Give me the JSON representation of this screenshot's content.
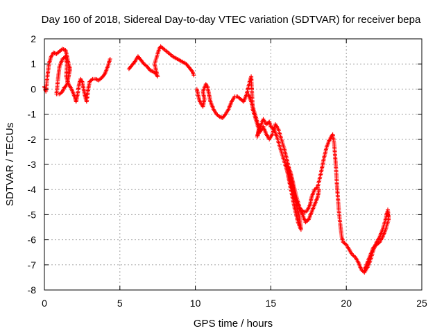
{
  "chart_data": {
    "type": "scatter",
    "title": "Day 160 of 2018, Sidereal Day-to-day VTEC variation (SDTVAR) for receiver bepa",
    "xlabel": "GPS time / hours",
    "ylabel": "SDTVAR / TECUs",
    "xlim": [
      0,
      25
    ],
    "ylim": [
      -8,
      2
    ],
    "xticks": [
      "0",
      "5",
      "10",
      "15",
      "20",
      "25"
    ],
    "yticks": [
      "2",
      "1",
      "0",
      "-1",
      "-2",
      "-3",
      "-4",
      "-5",
      "-6",
      "-7",
      "-8"
    ],
    "marker": "+",
    "grid": true,
    "color": "#ff0000",
    "series": [
      {
        "name": "segment-1",
        "anchors": [
          [
            0.0,
            0.1
          ],
          [
            0.1,
            -0.1
          ],
          [
            0.2,
            0.5
          ],
          [
            0.3,
            1.0
          ],
          [
            0.45,
            1.3
          ],
          [
            0.6,
            1.45
          ],
          [
            0.8,
            1.4
          ],
          [
            1.0,
            1.5
          ],
          [
            1.2,
            1.6
          ],
          [
            1.4,
            1.55
          ],
          [
            1.5,
            1.3
          ],
          [
            1.6,
            1.0
          ],
          [
            1.7,
            0.8
          ],
          [
            1.6,
            0.5
          ],
          [
            1.5,
            0.2
          ],
          [
            1.4,
            0.1
          ],
          [
            1.3,
            0.05
          ],
          [
            1.2,
            -0.1
          ],
          [
            1.0,
            -0.2
          ],
          [
            0.8,
            -0.2
          ],
          [
            0.9,
            0.4
          ],
          [
            1.0,
            0.9
          ],
          [
            1.2,
            1.2
          ],
          [
            1.4,
            1.3
          ],
          [
            1.5,
            1.0
          ],
          [
            1.45,
            0.5
          ],
          [
            1.6,
            0.2
          ],
          [
            1.8,
            0.0
          ],
          [
            2.0,
            -0.3
          ],
          [
            2.1,
            -0.5
          ],
          [
            2.2,
            -0.2
          ],
          [
            2.3,
            0.2
          ],
          [
            2.4,
            0.4
          ],
          [
            2.5,
            0.3
          ],
          [
            2.6,
            0.0
          ],
          [
            2.7,
            -0.3
          ],
          [
            2.8,
            -0.5
          ],
          [
            2.9,
            0.0
          ],
          [
            3.0,
            0.3
          ],
          [
            3.2,
            0.4
          ],
          [
            3.4,
            0.4
          ],
          [
            3.6,
            0.35
          ],
          [
            3.8,
            0.45
          ],
          [
            4.0,
            0.6
          ],
          [
            4.2,
            0.9
          ],
          [
            4.35,
            1.2
          ]
        ]
      },
      {
        "name": "segment-2",
        "anchors": [
          [
            5.6,
            0.8
          ],
          [
            5.8,
            0.95
          ],
          [
            6.0,
            1.1
          ],
          [
            6.2,
            1.3
          ],
          [
            6.4,
            1.15
          ],
          [
            6.6,
            1.0
          ],
          [
            6.8,
            0.9
          ],
          [
            7.0,
            0.75
          ],
          [
            7.2,
            0.7
          ],
          [
            7.4,
            0.6
          ],
          [
            7.5,
            0.5
          ],
          [
            7.3,
            1.0
          ],
          [
            7.5,
            1.4
          ],
          [
            7.6,
            1.6
          ],
          [
            7.7,
            1.7
          ],
          [
            7.9,
            1.6
          ],
          [
            8.2,
            1.45
          ],
          [
            8.5,
            1.3
          ],
          [
            8.8,
            1.2
          ],
          [
            9.1,
            1.1
          ],
          [
            9.4,
            1.0
          ],
          [
            9.6,
            0.85
          ],
          [
            9.8,
            0.7
          ],
          [
            9.9,
            0.55
          ]
        ]
      },
      {
        "name": "segment-3",
        "anchors": [
          [
            10.1,
            0.0
          ],
          [
            10.2,
            -0.3
          ],
          [
            10.3,
            -0.5
          ],
          [
            10.5,
            -0.7
          ],
          [
            10.6,
            -0.4
          ],
          [
            10.5,
            -0.1
          ],
          [
            10.7,
            0.2
          ],
          [
            10.8,
            0.1
          ],
          [
            10.9,
            -0.2
          ],
          [
            11.0,
            -0.5
          ],
          [
            11.2,
            -0.8
          ],
          [
            11.4,
            -1.0
          ],
          [
            11.6,
            -1.1
          ],
          [
            11.8,
            -1.15
          ],
          [
            12.0,
            -1.0
          ],
          [
            12.2,
            -0.8
          ],
          [
            12.4,
            -0.5
          ],
          [
            12.6,
            -0.3
          ],
          [
            12.8,
            -0.3
          ],
          [
            13.0,
            -0.4
          ],
          [
            13.2,
            -0.5
          ],
          [
            13.4,
            -0.2
          ],
          [
            13.6,
            0.3
          ],
          [
            13.7,
            0.5
          ],
          [
            13.8,
            -0.8
          ],
          [
            14.0,
            -1.2
          ],
          [
            14.2,
            -1.6
          ],
          [
            14.1,
            -1.9
          ],
          [
            14.3,
            -1.5
          ],
          [
            14.5,
            -1.2
          ],
          [
            14.7,
            -1.4
          ],
          [
            14.9,
            -1.3
          ],
          [
            15.0,
            -1.5
          ],
          [
            15.2,
            -1.6
          ],
          [
            15.4,
            -1.9
          ],
          [
            15.6,
            -2.3
          ],
          [
            15.8,
            -2.7
          ],
          [
            16.0,
            -3.1
          ],
          [
            16.2,
            -3.5
          ],
          [
            16.4,
            -3.9
          ],
          [
            16.6,
            -4.3
          ],
          [
            16.8,
            -4.6
          ],
          [
            17.0,
            -4.8
          ],
          [
            17.2,
            -4.9
          ],
          [
            17.4,
            -4.85
          ],
          [
            17.6,
            -4.6
          ],
          [
            17.7,
            -4.3
          ],
          [
            17.9,
            -4.0
          ],
          [
            18.1,
            -3.9
          ],
          [
            18.3,
            -3.4
          ],
          [
            18.5,
            -2.8
          ],
          [
            18.7,
            -2.3
          ],
          [
            18.9,
            -2.0
          ],
          [
            19.1,
            -1.8
          ],
          [
            19.2,
            -2.2
          ],
          [
            19.3,
            -3.0
          ],
          [
            19.4,
            -4.0
          ],
          [
            19.5,
            -4.8
          ],
          [
            19.6,
            -5.4
          ],
          [
            19.7,
            -5.9
          ],
          [
            19.8,
            -6.1
          ],
          [
            20.0,
            -6.2
          ],
          [
            20.2,
            -6.4
          ],
          [
            20.4,
            -6.6
          ],
          [
            20.6,
            -6.7
          ],
          [
            20.8,
            -6.9
          ],
          [
            21.0,
            -7.2
          ],
          [
            21.2,
            -7.3
          ],
          [
            21.4,
            -7.1
          ],
          [
            21.6,
            -6.8
          ],
          [
            21.8,
            -6.4
          ],
          [
            22.0,
            -6.1
          ],
          [
            22.2,
            -5.9
          ],
          [
            22.4,
            -5.6
          ],
          [
            22.6,
            -5.2
          ],
          [
            22.7,
            -4.9
          ],
          [
            22.8,
            -5.1
          ]
        ]
      },
      {
        "name": "segment-4",
        "anchors": [
          [
            13.5,
            -0.2
          ],
          [
            13.7,
            -0.5
          ],
          [
            13.9,
            -0.9
          ],
          [
            14.1,
            -1.3
          ],
          [
            14.3,
            -1.7
          ],
          [
            14.5,
            -1.5
          ],
          [
            14.7,
            -1.8
          ],
          [
            14.9,
            -2.0
          ],
          [
            15.1,
            -1.8
          ],
          [
            15.3,
            -1.4
          ],
          [
            15.5,
            -1.6
          ],
          [
            15.7,
            -2.0
          ],
          [
            15.9,
            -2.4
          ],
          [
            16.1,
            -2.9
          ],
          [
            16.3,
            -3.4
          ],
          [
            16.5,
            -4.0
          ],
          [
            16.7,
            -4.6
          ],
          [
            16.9,
            -5.1
          ],
          [
            17.0,
            -5.6
          ],
          [
            16.8,
            -5.3
          ],
          [
            16.6,
            -4.8
          ],
          [
            16.4,
            -4.2
          ],
          [
            16.2,
            -3.6
          ],
          [
            16.0,
            -3.0
          ],
          [
            16.3,
            -3.3
          ],
          [
            16.5,
            -3.8
          ],
          [
            16.7,
            -4.3
          ],
          [
            16.9,
            -4.7
          ],
          [
            17.1,
            -5.0
          ],
          [
            17.3,
            -5.3
          ],
          [
            17.5,
            -5.2
          ],
          [
            17.7,
            -4.9
          ],
          [
            17.9,
            -4.6
          ],
          [
            18.1,
            -4.3
          ],
          [
            18.2,
            -4.0
          ]
        ]
      },
      {
        "name": "segment-5",
        "anchors": [
          [
            21.2,
            -7.2
          ],
          [
            21.4,
            -6.9
          ],
          [
            21.6,
            -6.6
          ],
          [
            21.8,
            -6.3
          ],
          [
            22.0,
            -6.2
          ],
          [
            22.2,
            -6.1
          ],
          [
            22.4,
            -5.9
          ],
          [
            22.6,
            -5.6
          ],
          [
            22.8,
            -5.2
          ],
          [
            22.75,
            -4.8
          ]
        ]
      }
    ]
  }
}
